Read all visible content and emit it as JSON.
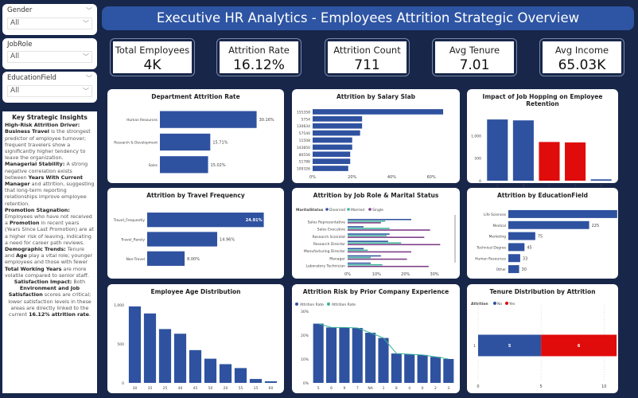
{
  "filters": [
    {
      "label": "Gender",
      "value": "All"
    },
    {
      "label": "JobRole",
      "value": "All"
    },
    {
      "label": "EducationField",
      "value": "All"
    }
  ],
  "insights": {
    "title": "Key Strategic Insights",
    "p1_b": "High-Risk Attrition Driver: Business Travel",
    "p1": " is the strongest predictor of employee turnover; frequent travelers show a significantly higher tendency to leave the organization.",
    "p2_b": "Managerial Stability:",
    "p2": " A strong negative correlation exists between ",
    "p2_b2": "Years With Current Manager",
    "p2b": " and attrition, suggesting that long-term reporting relationships improve employee retention.",
    "p3_b": "Promotion Stagnation:",
    "p3": " Employees who have not received a ",
    "p3_b2": "Promotion",
    "p3b": " in recent years (Years Since Last Promotion) are at a higher risk of leaving, indicating a need for career path reviews.",
    "p4_b": "Demographic Trends:",
    "p4": " Tenure and ",
    "p4_b2": "Age",
    "p4b": " play a vital role; younger employees and those with fewer ",
    "p4_b3": "Total Working Years",
    "p4c": " are more volatile compared to senior staff.",
    "p5_b": "Satisfaction Impact:",
    "p5": " Both ",
    "p5_b2": "Environment and Job Satisfaction",
    "p5b": " scores are critical; lower satisfaction levels in these areas are directly linked to the current ",
    "p5_b3": "16.12% attrition rate",
    "p5c": "."
  },
  "title": "Executive HR Analytics - Employees Attrition Strategic Overview",
  "kpis": [
    {
      "label": "Total Employees",
      "value": "4K"
    },
    {
      "label": "Attrition Rate",
      "value": "16.12%"
    },
    {
      "label": "Attrition Count",
      "value": "711"
    },
    {
      "label": "Avg Tenure",
      "value": "7.01"
    },
    {
      "label": "Avg Income",
      "value": "65.03K"
    }
  ],
  "colors": {
    "blue": "#2f52a0",
    "red": "#e00b0b",
    "teal": "#3bb49a",
    "purple": "#7b3b85"
  },
  "chart_data": [
    {
      "id": "dept",
      "type": "bar",
      "orientation": "horizontal",
      "title": "Department Attrition Rate",
      "categories": [
        "Human Resources",
        "Research & Development",
        "Sales"
      ],
      "values": [
        30.16,
        15.71,
        15.02
      ],
      "labels": [
        "30.16%",
        "15.71%",
        "15.02%"
      ],
      "xlim": [
        0,
        32
      ]
    },
    {
      "id": "salary",
      "type": "bar",
      "orientation": "horizontal",
      "title": "Attrition by Salary Slab",
      "categories": [
        "155358",
        "5754",
        "130834",
        "57540",
        "11508",
        "143850",
        "80556",
        "51786",
        "109326"
      ],
      "values": [
        66,
        25,
        25,
        24,
        20,
        20,
        19,
        19,
        18
      ],
      "xticks": [
        "0%",
        "20%",
        "40%",
        "60%"
      ],
      "xlim": [
        0,
        70
      ]
    },
    {
      "id": "hop",
      "type": "bar",
      "title": "Impact of Job Hopping on Employee Retention",
      "categories": [
        "3",
        "4",
        "2",
        "1",
        "0"
      ],
      "values": [
        1360,
        1340,
        860,
        850,
        30
      ],
      "bar_colors": [
        "#2f52a0",
        "#2f52a0",
        "#e00b0b",
        "#e00b0b",
        "#2f52a0"
      ],
      "yticks": [
        "0",
        "500",
        "1,000"
      ],
      "ylim": [
        0,
        1450
      ]
    },
    {
      "id": "travel",
      "type": "bar",
      "orientation": "horizontal",
      "title": "Attrition by Travel Frequency",
      "categories": [
        "Travel_Frequently",
        "Travel_Rarely",
        "Non-Travel"
      ],
      "values": [
        24.91,
        14.96,
        8.0
      ],
      "labels": [
        "24.91%",
        "14.96%",
        "8.00%"
      ],
      "xlim": [
        0,
        26
      ]
    },
    {
      "id": "role",
      "type": "bar",
      "orientation": "horizontal",
      "title": "Attrition by Job Role & Marital Status",
      "legend_title": "MaritalStatus",
      "categories": [
        "Sales Representative",
        "Sales Executive",
        "Research Scientist",
        "Research Director",
        "Manufacturing Director",
        "Manager",
        "Laboratory Technician"
      ],
      "series": [
        {
          "name": "Divorced",
          "values": [
            22,
            5.5,
            14.5,
            14,
            5.5,
            11.5,
            8
          ]
        },
        {
          "name": "Married",
          "values": [
            13,
            14.5,
            13.5,
            18.5,
            7,
            8,
            12
          ]
        },
        {
          "name": "Single",
          "values": [
            11.5,
            28.5,
            26.5,
            32,
            22,
            20.5,
            28
          ]
        }
      ],
      "xticks": [
        "0%",
        "10%",
        "20%",
        "30%"
      ],
      "xlim": [
        0,
        33
      ]
    },
    {
      "id": "edu",
      "type": "bar",
      "orientation": "horizontal",
      "title": "Attrition by EducationField",
      "categories": [
        "Life Sciences",
        "Medical",
        "Marketing",
        "Technical Degree",
        "Human Resources",
        "Other"
      ],
      "values": [
        303,
        225,
        75,
        45,
        33,
        30
      ],
      "labels": [
        "303",
        "225",
        "75",
        "45",
        "33",
        "30"
      ],
      "xlim": [
        0,
        310
      ]
    },
    {
      "id": "age",
      "type": "bar",
      "title": "Employee Age Distribution",
      "categories": [
        "30",
        "35",
        "25",
        "40",
        "45",
        "50",
        "20",
        "55",
        "15",
        "60"
      ],
      "values": [
        980,
        890,
        690,
        630,
        420,
        310,
        240,
        190,
        50,
        20
      ],
      "yticks": [
        "0",
        "500",
        "1,000"
      ],
      "ylim": [
        0,
        1000
      ]
    },
    {
      "id": "prior",
      "type": "bar+line",
      "title": "Attrition Risk by Prior Company Experience",
      "categories": [
        "5",
        "6",
        "9",
        "7",
        "NA",
        "1",
        "8",
        "4",
        "0",
        "2",
        "3"
      ],
      "series": [
        {
          "name": "Attrition Rate",
          "values": [
            24.8,
            23.2,
            23.2,
            23,
            21,
            18.8,
            12.3,
            12,
            11.7,
            10.9,
            10
          ]
        },
        {
          "name": "Attrition Rate",
          "values": [
            24.8,
            23.2,
            23.2,
            23,
            21,
            18.8,
            12.3,
            12,
            11.7,
            10.9,
            10
          ]
        }
      ],
      "yticks": [
        "0%",
        "10%",
        "20%",
        "30%"
      ],
      "ylim": [
        0,
        30
      ]
    },
    {
      "id": "tenure",
      "type": "bar",
      "orientation": "horizontal",
      "stacked": true,
      "title": "Tenure Distribution by Attrition",
      "legend_title": "Attrition",
      "categories": [
        "1"
      ],
      "series": [
        {
          "name": "No",
          "values": [
            5
          ]
        },
        {
          "name": "Yes",
          "values": [
            6
          ]
        }
      ],
      "xticks": [
        "0",
        "5",
        "10"
      ],
      "xlim": [
        0,
        11.5
      ]
    }
  ]
}
